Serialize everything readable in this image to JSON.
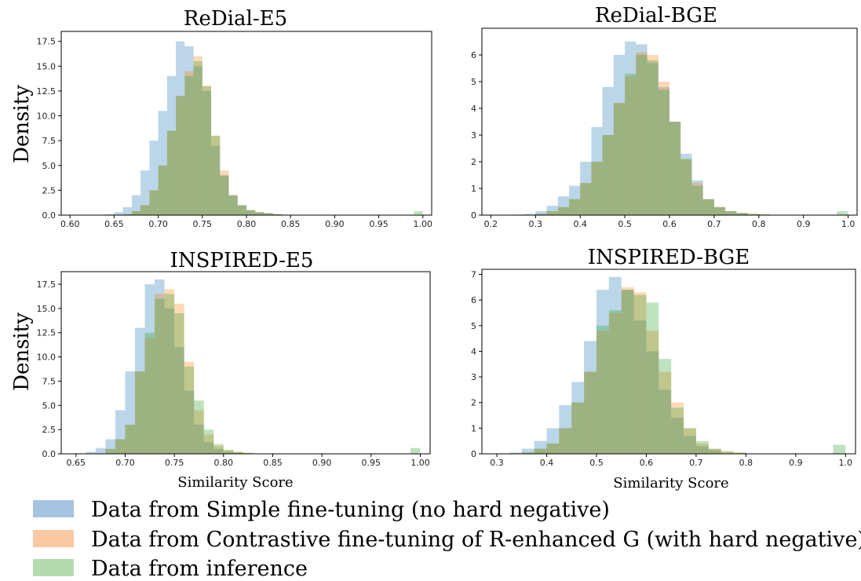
{
  "chart_data": [
    {
      "type": "histogram",
      "title": "ReDial-E5",
      "ylabel": "Density",
      "xlabel": "",
      "xlim": [
        0.59,
        1.01
      ],
      "ylim": [
        0,
        18.5
      ],
      "xticks": [
        "0.60",
        "0.65",
        "0.70",
        "0.75",
        "0.80",
        "0.85",
        "0.90",
        "0.95",
        "1.00"
      ],
      "yticks": [
        "0.0",
        "2.5",
        "5.0",
        "7.5",
        "10.0",
        "12.5",
        "15.0",
        "17.5"
      ],
      "series": [
        {
          "name": "simple",
          "bins": [
            [
              0.64,
              0.1
            ],
            [
              0.65,
              0.3
            ],
            [
              0.66,
              0.8
            ],
            [
              0.67,
              2.0
            ],
            [
              0.68,
              4.5
            ],
            [
              0.69,
              7.5
            ],
            [
              0.7,
              10.5
            ],
            [
              0.71,
              14.0
            ],
            [
              0.72,
              17.5
            ],
            [
              0.73,
              17.0
            ],
            [
              0.74,
              15.0
            ],
            [
              0.75,
              12.5
            ],
            [
              0.76,
              7.0
            ],
            [
              0.77,
              4.0
            ],
            [
              0.78,
              2.0
            ],
            [
              0.79,
              1.0
            ],
            [
              0.8,
              0.5
            ],
            [
              0.81,
              0.3
            ],
            [
              0.82,
              0.2
            ],
            [
              0.83,
              0.1
            ]
          ]
        },
        {
          "name": "contrastive",
          "bins": [
            [
              0.66,
              0.1
            ],
            [
              0.67,
              0.4
            ],
            [
              0.68,
              1.0
            ],
            [
              0.69,
              2.5
            ],
            [
              0.7,
              5.0
            ],
            [
              0.71,
              8.5
            ],
            [
              0.72,
              12.0
            ],
            [
              0.73,
              14.5
            ],
            [
              0.74,
              16.0
            ],
            [
              0.75,
              13.0
            ],
            [
              0.76,
              8.0
            ],
            [
              0.77,
              4.5
            ],
            [
              0.78,
              2.0
            ],
            [
              0.79,
              1.0
            ],
            [
              0.8,
              0.5
            ],
            [
              0.81,
              0.3
            ],
            [
              0.82,
              0.2
            ],
            [
              0.83,
              0.1
            ],
            [
              0.84,
              0.05
            ]
          ]
        },
        {
          "name": "inference",
          "bins": [
            [
              0.66,
              0.1
            ],
            [
              0.67,
              0.4
            ],
            [
              0.68,
              1.0
            ],
            [
              0.69,
              2.5
            ],
            [
              0.7,
              5.0
            ],
            [
              0.71,
              8.5
            ],
            [
              0.72,
              12.0
            ],
            [
              0.73,
              14.0
            ],
            [
              0.74,
              15.5
            ],
            [
              0.75,
              13.0
            ],
            [
              0.76,
              8.0
            ],
            [
              0.77,
              4.0
            ],
            [
              0.78,
              2.0
            ],
            [
              0.79,
              1.0
            ],
            [
              0.8,
              0.5
            ],
            [
              0.81,
              0.3
            ],
            [
              0.82,
              0.2
            ],
            [
              0.83,
              0.1
            ],
            [
              0.99,
              0.4
            ]
          ]
        }
      ]
    },
    {
      "type": "histogram",
      "title": "ReDial-BGE",
      "ylabel": "",
      "xlabel": "",
      "xlim": [
        0.18,
        1.02
      ],
      "ylim": [
        0,
        7.0
      ],
      "xticks": [
        "0.2",
        "0.3",
        "0.4",
        "0.5",
        "0.6",
        "0.7",
        "0.8",
        "0.9",
        "1.0"
      ],
      "yticks": [
        "0",
        "1",
        "2",
        "3",
        "4",
        "5",
        "6"
      ],
      "series": [
        {
          "name": "simple",
          "bins": [
            [
              0.25,
              0.02
            ],
            [
              0.275,
              0.05
            ],
            [
              0.3,
              0.15
            ],
            [
              0.325,
              0.35
            ],
            [
              0.35,
              0.7
            ],
            [
              0.375,
              1.1
            ],
            [
              0.4,
              2.0
            ],
            [
              0.425,
              3.3
            ],
            [
              0.45,
              4.8
            ],
            [
              0.475,
              6.0
            ],
            [
              0.5,
              6.5
            ],
            [
              0.525,
              6.4
            ],
            [
              0.55,
              5.7
            ],
            [
              0.575,
              4.8
            ],
            [
              0.6,
              3.5
            ],
            [
              0.625,
              2.3
            ],
            [
              0.65,
              1.3
            ],
            [
              0.675,
              0.6
            ],
            [
              0.7,
              0.3
            ],
            [
              0.725,
              0.15
            ],
            [
              0.75,
              0.08
            ]
          ]
        },
        {
          "name": "contrastive",
          "bins": [
            [
              0.3,
              0.05
            ],
            [
              0.325,
              0.15
            ],
            [
              0.35,
              0.3
            ],
            [
              0.375,
              0.6
            ],
            [
              0.4,
              1.2
            ],
            [
              0.425,
              2.0
            ],
            [
              0.45,
              3.0
            ],
            [
              0.475,
              4.2
            ],
            [
              0.5,
              5.2
            ],
            [
              0.525,
              6.1
            ],
            [
              0.55,
              6.0
            ],
            [
              0.575,
              5.0
            ],
            [
              0.6,
              3.5
            ],
            [
              0.625,
              2.1
            ],
            [
              0.65,
              1.2
            ],
            [
              0.675,
              0.6
            ],
            [
              0.7,
              0.3
            ],
            [
              0.725,
              0.15
            ],
            [
              0.75,
              0.08
            ],
            [
              0.775,
              0.05
            ],
            [
              0.8,
              0.03
            ]
          ]
        },
        {
          "name": "inference",
          "bins": [
            [
              0.3,
              0.05
            ],
            [
              0.325,
              0.15
            ],
            [
              0.35,
              0.3
            ],
            [
              0.375,
              0.6
            ],
            [
              0.4,
              1.2
            ],
            [
              0.425,
              2.0
            ],
            [
              0.45,
              3.0
            ],
            [
              0.475,
              4.2
            ],
            [
              0.5,
              5.3
            ],
            [
              0.525,
              6.0
            ],
            [
              0.55,
              5.8
            ],
            [
              0.575,
              4.7
            ],
            [
              0.6,
              3.5
            ],
            [
              0.625,
              2.1
            ],
            [
              0.65,
              1.1
            ],
            [
              0.675,
              0.6
            ],
            [
              0.7,
              0.3
            ],
            [
              0.725,
              0.15
            ],
            [
              0.75,
              0.08
            ],
            [
              0.775,
              0.05
            ],
            [
              0.8,
              0.03
            ],
            [
              0.975,
              0.15
            ]
          ]
        }
      ]
    },
    {
      "type": "histogram",
      "title": "INSPIRED-E5",
      "ylabel": "Density",
      "xlabel": "Similarity Score",
      "xlim": [
        0.635,
        1.01
      ],
      "ylim": [
        0,
        18.8
      ],
      "xticks": [
        "0.65",
        "0.70",
        "0.75",
        "0.80",
        "0.85",
        "0.90",
        "0.95",
        "1.00"
      ],
      "yticks": [
        "0.0",
        "2.5",
        "5.0",
        "7.5",
        "10.0",
        "12.5",
        "15.0",
        "17.5"
      ],
      "series": [
        {
          "name": "simple",
          "bins": [
            [
              0.66,
              0.2
            ],
            [
              0.67,
              0.6
            ],
            [
              0.68,
              1.5
            ],
            [
              0.69,
              4.5
            ],
            [
              0.7,
              8.5
            ],
            [
              0.71,
              13.0
            ],
            [
              0.72,
              17.5
            ],
            [
              0.73,
              18.0
            ],
            [
              0.74,
              15.0
            ],
            [
              0.75,
              11.0
            ],
            [
              0.76,
              6.5
            ],
            [
              0.77,
              3.0
            ],
            [
              0.78,
              1.2
            ],
            [
              0.79,
              0.5
            ],
            [
              0.8,
              0.2
            ],
            [
              0.81,
              0.1
            ]
          ]
        },
        {
          "name": "contrastive",
          "bins": [
            [
              0.68,
              0.5
            ],
            [
              0.69,
              1.5
            ],
            [
              0.7,
              3.0
            ],
            [
              0.71,
              8.5
            ],
            [
              0.72,
              12.0
            ],
            [
              0.73,
              16.5
            ],
            [
              0.74,
              17.0
            ],
            [
              0.75,
              15.5
            ],
            [
              0.76,
              9.5
            ],
            [
              0.77,
              4.5
            ],
            [
              0.78,
              2.0
            ],
            [
              0.79,
              0.8
            ],
            [
              0.8,
              0.4
            ],
            [
              0.81,
              0.2
            ],
            [
              0.82,
              0.1
            ]
          ]
        },
        {
          "name": "inference",
          "bins": [
            [
              0.68,
              0.5
            ],
            [
              0.69,
              1.5
            ],
            [
              0.7,
              3.0
            ],
            [
              0.71,
              8.5
            ],
            [
              0.72,
              12.5
            ],
            [
              0.73,
              16.0
            ],
            [
              0.74,
              16.5
            ],
            [
              0.75,
              14.5
            ],
            [
              0.76,
              9.0
            ],
            [
              0.77,
              5.5
            ],
            [
              0.78,
              2.5
            ],
            [
              0.79,
              1.0
            ],
            [
              0.8,
              0.4
            ],
            [
              0.81,
              0.2
            ],
            [
              0.82,
              0.1
            ],
            [
              0.99,
              0.6
            ]
          ]
        }
      ]
    },
    {
      "type": "histogram",
      "title": "INSPIRED-BGE",
      "ylabel": "",
      "xlabel": "Similarity Score",
      "xlim": [
        0.27,
        1.02
      ],
      "ylim": [
        0,
        7.2
      ],
      "xticks": [
        "0.3",
        "0.4",
        "0.5",
        "0.6",
        "0.7",
        "0.8",
        "0.9",
        "1.0"
      ],
      "yticks": [
        "0",
        "1",
        "2",
        "3",
        "4",
        "5",
        "6",
        "7"
      ],
      "series": [
        {
          "name": "simple",
          "bins": [
            [
              0.325,
              0.05
            ],
            [
              0.35,
              0.2
            ],
            [
              0.375,
              0.5
            ],
            [
              0.4,
              1.0
            ],
            [
              0.425,
              1.9
            ],
            [
              0.45,
              2.8
            ],
            [
              0.475,
              4.4
            ],
            [
              0.5,
              6.4
            ],
            [
              0.525,
              6.9
            ],
            [
              0.55,
              6.4
            ],
            [
              0.575,
              5.2
            ],
            [
              0.6,
              4.0
            ],
            [
              0.625,
              2.5
            ],
            [
              0.65,
              1.4
            ],
            [
              0.675,
              0.7
            ],
            [
              0.7,
              0.3
            ],
            [
              0.725,
              0.15
            ]
          ]
        },
        {
          "name": "contrastive",
          "bins": [
            [
              0.35,
              0.05
            ],
            [
              0.375,
              0.2
            ],
            [
              0.4,
              0.4
            ],
            [
              0.425,
              1.0
            ],
            [
              0.45,
              2.0
            ],
            [
              0.475,
              3.2
            ],
            [
              0.5,
              4.8
            ],
            [
              0.525,
              5.5
            ],
            [
              0.55,
              6.5
            ],
            [
              0.575,
              6.3
            ],
            [
              0.6,
              4.8
            ],
            [
              0.625,
              3.2
            ],
            [
              0.65,
              2.0
            ],
            [
              0.675,
              1.0
            ],
            [
              0.7,
              0.4
            ],
            [
              0.725,
              0.2
            ],
            [
              0.75,
              0.1
            ],
            [
              0.775,
              0.05
            ]
          ]
        },
        {
          "name": "inference",
          "bins": [
            [
              0.35,
              0.05
            ],
            [
              0.375,
              0.2
            ],
            [
              0.4,
              0.4
            ],
            [
              0.425,
              1.0
            ],
            [
              0.45,
              2.0
            ],
            [
              0.475,
              3.2
            ],
            [
              0.5,
              5.0
            ],
            [
              0.525,
              5.6
            ],
            [
              0.55,
              6.4
            ],
            [
              0.575,
              6.2
            ],
            [
              0.6,
              5.9
            ],
            [
              0.625,
              3.7
            ],
            [
              0.65,
              1.8
            ],
            [
              0.675,
              1.0
            ],
            [
              0.7,
              0.5
            ],
            [
              0.725,
              0.2
            ],
            [
              0.75,
              0.1
            ],
            [
              0.775,
              0.05
            ],
            [
              0.975,
              0.35
            ]
          ]
        }
      ]
    }
  ],
  "legend": [
    {
      "key": "simple",
      "label": "Data from Simple fine-tuning (no hard negative)",
      "color": "#a6c4e0"
    },
    {
      "key": "contrastive",
      "label": "Data from Contrastive fine-tuning of R-enhanced G (with hard negative)",
      "color": "#f8c9a2"
    },
    {
      "key": "inference",
      "label": "Data from inference",
      "color": "#b6dab0"
    }
  ],
  "series_colors": {
    "simple": "#1f77b4",
    "contrastive": "#ff7f0e",
    "inference": "#2ca02c"
  }
}
